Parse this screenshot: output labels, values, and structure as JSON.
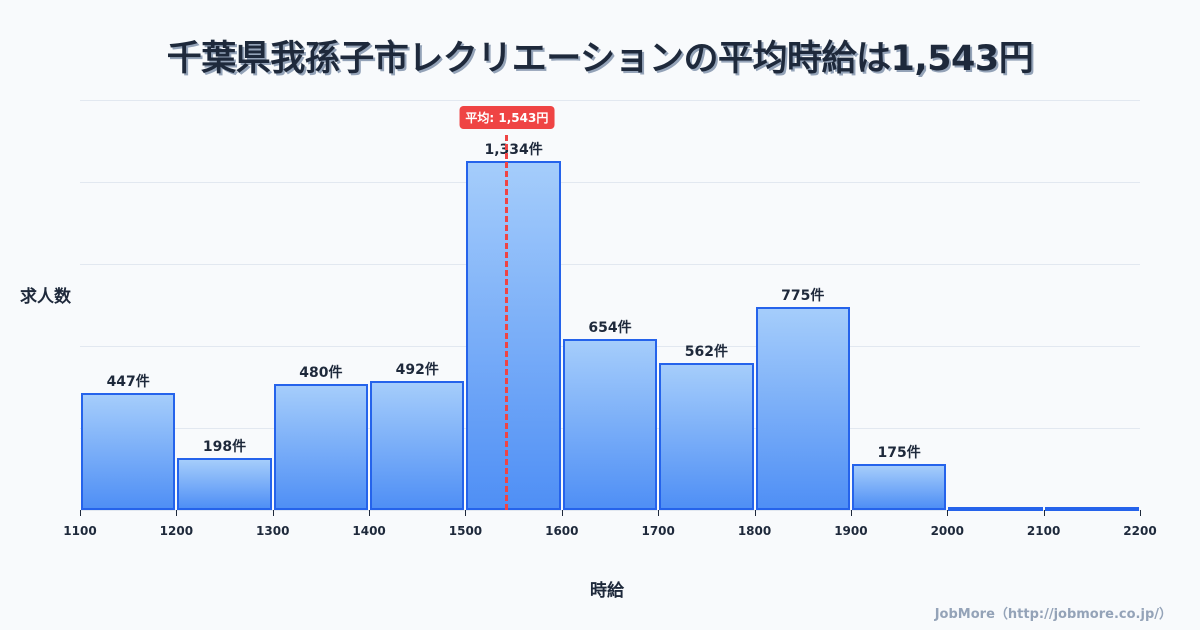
{
  "title": "千葉県我孫子市レクリエーションの平均時給は1,543円",
  "y_axis_label": "求人数",
  "x_axis_label": "時給",
  "credit": "JobMore（http://jobmore.co.jp/）",
  "mean_badge": "平均: 1,543円",
  "colors": {
    "bar_fill_top": "#a5cdfb",
    "bar_fill_bottom": "#4f8ff5",
    "bar_border": "#2563eb",
    "mean_line": "#ef4444",
    "title": "#1e293b"
  },
  "chart_data": {
    "type": "bar",
    "title": "千葉県我孫子市レクリエーションの平均時給は1,543円",
    "xlabel": "時給",
    "ylabel": "求人数",
    "categories": [
      "1100-1200",
      "1200-1300",
      "1300-1400",
      "1400-1500",
      "1500-1600",
      "1600-1700",
      "1700-1800",
      "1800-1900",
      "1900-2000",
      "2000-2100",
      "2100-2200"
    ],
    "values": [
      447,
      198,
      480,
      492,
      1334,
      654,
      562,
      775,
      175,
      0,
      0
    ],
    "value_labels": [
      "447件",
      "198件",
      "480件",
      "492件",
      "1,334件",
      "654件",
      "562件",
      "775件",
      "175件",
      "",
      ""
    ],
    "x_ticks": [
      "1100",
      "1200",
      "1300",
      "1400",
      "1500",
      "1600",
      "1700",
      "1800",
      "1900",
      "2000",
      "2100",
      "2200"
    ],
    "xlim": [
      1100,
      2200
    ],
    "ylim": [
      0,
      1567
    ],
    "grid": true,
    "mean": 1543,
    "mean_label": "平均: 1,543円"
  }
}
